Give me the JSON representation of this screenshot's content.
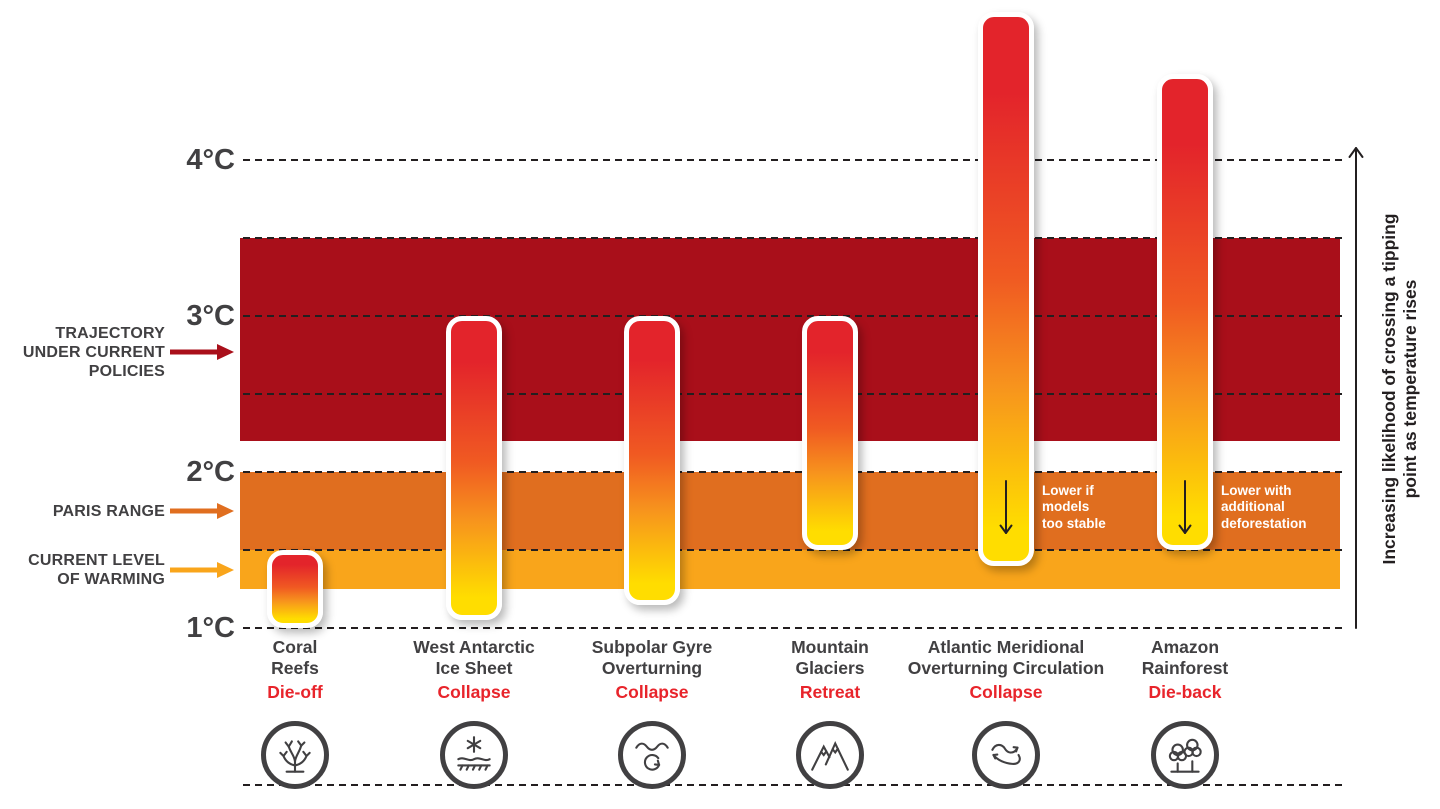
{
  "chart_data": {
    "type": "bar",
    "subtype": "vertical-range-bars",
    "title": "",
    "unit": "°C",
    "ylim": [
      1,
      5
    ],
    "grid": true,
    "yticks": [
      {
        "value": 1,
        "label": "1°C"
      },
      {
        "value": 2,
        "label": "2°C"
      },
      {
        "value": 3,
        "label": "3°C"
      },
      {
        "value": 4,
        "label": "4°C"
      }
    ],
    "gridlines": [
      1,
      1.5,
      2,
      2.5,
      3,
      3.5,
      4
    ],
    "bands": [
      {
        "name": "TRAJECTORY UNDER CURRENT POLICIES",
        "from": 2.2,
        "to": 3.5,
        "color": "#a90f1a"
      },
      {
        "name": "PARIS RANGE",
        "from": 1.5,
        "to": 2.0,
        "color": "#e06e1f"
      },
      {
        "name": "CURRENT LEVEL OF WARMING",
        "from": 1.25,
        "to": 1.5,
        "color": "#f9a51b"
      }
    ],
    "bars": [
      {
        "name": "Coral Reefs",
        "name_lines": [
          "Coral",
          "Reefs"
        ],
        "outcome": "Die-off",
        "from": 1.0,
        "to": 1.5,
        "icon": "coral-icon"
      },
      {
        "name": "West Antarctic Ice Sheet",
        "name_lines": [
          "West Antarctic",
          "Ice Sheet"
        ],
        "outcome": "Collapse",
        "from": 1.05,
        "to": 3.0,
        "icon": "ice-sheet-icon"
      },
      {
        "name": "Subpolar Gyre Overturning",
        "name_lines": [
          "Subpolar Gyre",
          "Overturning"
        ],
        "outcome": "Collapse",
        "from": 1.15,
        "to": 3.0,
        "icon": "gyre-icon"
      },
      {
        "name": "Mountain Glaciers",
        "name_lines": [
          "Mountain",
          "Glaciers"
        ],
        "outcome": "Retreat",
        "from": 1.5,
        "to": 3.0,
        "icon": "mountain-icon"
      },
      {
        "name": "Atlantic Meridional Overturning Circulation",
        "name_lines": [
          "Atlantic Meridional",
          "Overturning Circulation"
        ],
        "outcome": "Collapse",
        "from": 1.4,
        "to": 4.95,
        "icon": "amoc-icon",
        "annotation": "Lower if\nmodels\ntoo stable"
      },
      {
        "name": "Amazon Rainforest",
        "name_lines": [
          "Amazon",
          "Rainforest"
        ],
        "outcome": "Die-back",
        "from": 1.5,
        "to": 4.55,
        "icon": "amazon-icon",
        "annotation": "Lower with\nadditional\ndeforestation"
      }
    ],
    "bar_gradient": [
      "#e3242b",
      "#f05a22",
      "#f7941d",
      "#ffdd00"
    ],
    "outcome_color": "#e8242b",
    "text_color": "#414042",
    "right_axis_label": "Increasing likelihood of crossing a tipping\npoint as temperature rises"
  }
}
